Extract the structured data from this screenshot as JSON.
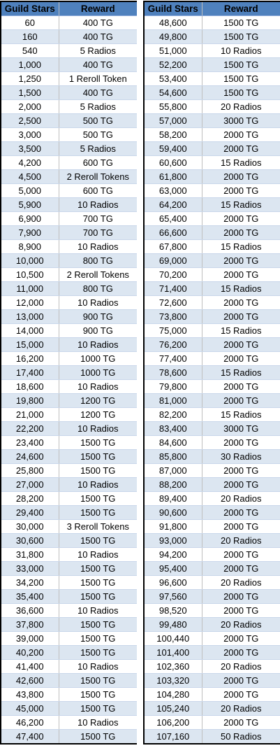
{
  "headers": {
    "stars": "Guild Stars",
    "reward": "Reward"
  },
  "colors": {
    "header_bg": "#4f81bd",
    "band": "#dce6f1",
    "border": "#000000"
  },
  "left_rows": [
    [
      "60",
      "400 TG"
    ],
    [
      "160",
      "400 TG"
    ],
    [
      "540",
      "5 Radios"
    ],
    [
      "1,000",
      "400 TG"
    ],
    [
      "1,250",
      "1 Reroll Token"
    ],
    [
      "1,500",
      "400 TG"
    ],
    [
      "2,000",
      "5 Radios"
    ],
    [
      "2,500",
      "500 TG"
    ],
    [
      "3,000",
      "500 TG"
    ],
    [
      "3,500",
      "5 Radios"
    ],
    [
      "4,200",
      "600 TG"
    ],
    [
      "4,500",
      "2 Reroll Tokens"
    ],
    [
      "5,000",
      "600 TG"
    ],
    [
      "5,900",
      "10 Radios"
    ],
    [
      "6,900",
      "700 TG"
    ],
    [
      "7,900",
      "700 TG"
    ],
    [
      "8,900",
      "10 Radios"
    ],
    [
      "10,000",
      "800 TG"
    ],
    [
      "10,500",
      "2 Reroll Tokens"
    ],
    [
      "11,000",
      "800 TG"
    ],
    [
      "12,000",
      "10 Radios"
    ],
    [
      "13,000",
      "900 TG"
    ],
    [
      "14,000",
      "900 TG"
    ],
    [
      "15,000",
      "10 Radios"
    ],
    [
      "16,200",
      "1000 TG"
    ],
    [
      "17,400",
      "1000 TG"
    ],
    [
      "18,600",
      "10 Radios"
    ],
    [
      "19,800",
      "1200 TG"
    ],
    [
      "21,000",
      "1200 TG"
    ],
    [
      "22,200",
      "10 Radios"
    ],
    [
      "23,400",
      "1500 TG"
    ],
    [
      "24,600",
      "1500 TG"
    ],
    [
      "25,800",
      "1500 TG"
    ],
    [
      "27,000",
      "10 Radios"
    ],
    [
      "28,200",
      "1500 TG"
    ],
    [
      "29,400",
      "1500 TG"
    ],
    [
      "30,000",
      "3 Reroll Tokens"
    ],
    [
      "30,600",
      "1500 TG"
    ],
    [
      "31,800",
      "10 Radios"
    ],
    [
      "33,000",
      "1500 TG"
    ],
    [
      "34,200",
      "1500 TG"
    ],
    [
      "35,400",
      "1500 TG"
    ],
    [
      "36,600",
      "10 Radios"
    ],
    [
      "37,800",
      "1500 TG"
    ],
    [
      "39,000",
      "1500 TG"
    ],
    [
      "40,200",
      "1500 TG"
    ],
    [
      "41,400",
      "10 Radios"
    ],
    [
      "42,600",
      "1500 TG"
    ],
    [
      "43,800",
      "1500 TG"
    ],
    [
      "45,000",
      "1500 TG"
    ],
    [
      "46,200",
      "10 Radios"
    ],
    [
      "47,400",
      "1500 TG"
    ]
  ],
  "right_rows": [
    [
      "48,600",
      "1500 TG"
    ],
    [
      "49,800",
      "1500 TG"
    ],
    [
      "51,000",
      "10 Radios"
    ],
    [
      "52,200",
      "1500 TG"
    ],
    [
      "53,400",
      "1500 TG"
    ],
    [
      "54,600",
      "1500 TG"
    ],
    [
      "55,800",
      "20 Radios"
    ],
    [
      "57,000",
      "3000 TG"
    ],
    [
      "58,200",
      "2000 TG"
    ],
    [
      "59,400",
      "2000 TG"
    ],
    [
      "60,600",
      "15 Radios"
    ],
    [
      "61,800",
      "2000 TG"
    ],
    [
      "63,000",
      "2000 TG"
    ],
    [
      "64,200",
      "15 Radios"
    ],
    [
      "65,400",
      "2000 TG"
    ],
    [
      "66,600",
      "2000 TG"
    ],
    [
      "67,800",
      "15 Radios"
    ],
    [
      "69,000",
      "2000 TG"
    ],
    [
      "70,200",
      "2000 TG"
    ],
    [
      "71,400",
      "15 Radios"
    ],
    [
      "72,600",
      "2000 TG"
    ],
    [
      "73,800",
      "2000 TG"
    ],
    [
      "75,000",
      "15 Radios"
    ],
    [
      "76,200",
      "2000 TG"
    ],
    [
      "77,400",
      "2000 TG"
    ],
    [
      "78,600",
      "15 Radios"
    ],
    [
      "79,800",
      "2000 TG"
    ],
    [
      "81,000",
      "2000 TG"
    ],
    [
      "82,200",
      "15 Radios"
    ],
    [
      "83,400",
      "3000 TG"
    ],
    [
      "84,600",
      "2000 TG"
    ],
    [
      "85,800",
      "30 Radios"
    ],
    [
      "87,000",
      "2000 TG"
    ],
    [
      "88,200",
      "2000 TG"
    ],
    [
      "89,400",
      "20 Radios"
    ],
    [
      "90,600",
      "2000 TG"
    ],
    [
      "91,800",
      "2000 TG"
    ],
    [
      "93,000",
      "20 Radios"
    ],
    [
      "94,200",
      "2000 TG"
    ],
    [
      "95,400",
      "2000 TG"
    ],
    [
      "96,600",
      "20 Radios"
    ],
    [
      "97,560",
      "2000 TG"
    ],
    [
      "98,520",
      "2000 TG"
    ],
    [
      "99,480",
      "20 Radios"
    ],
    [
      "100,440",
      "2000 TG"
    ],
    [
      "101,400",
      "2000 TG"
    ],
    [
      "102,360",
      "20 Radios"
    ],
    [
      "103,320",
      "2000 TG"
    ],
    [
      "104,280",
      "2000 TG"
    ],
    [
      "105,240",
      "20 Radios"
    ],
    [
      "106,200",
      "2000 TG"
    ],
    [
      "107,160",
      "50 Radios"
    ]
  ]
}
